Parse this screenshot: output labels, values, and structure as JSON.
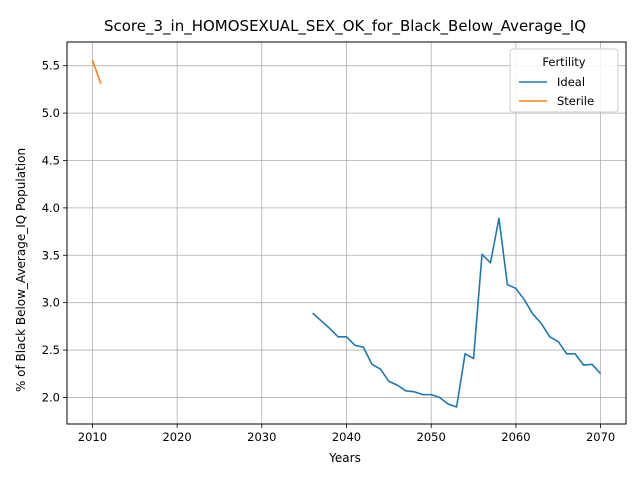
{
  "chart_data": {
    "type": "line",
    "title": "Score_3_in_HOMOSEXUAL_SEX_OK_for_Black_Below_Average_IQ",
    "xlabel": "Years",
    "ylabel": "% of Black Below_Average_IQ Population",
    "xlim": [
      2007,
      2073
    ],
    "ylim": [
      1.72,
      5.75
    ],
    "xticks": [
      2010,
      2020,
      2030,
      2040,
      2050,
      2060,
      2070
    ],
    "yticks": [
      2.0,
      2.5,
      3.0,
      3.5,
      4.0,
      4.5,
      5.0,
      5.5
    ],
    "xtick_labels": [
      "2010",
      "2020",
      "2030",
      "2040",
      "2050",
      "2060",
      "2070"
    ],
    "ytick_labels": [
      "2.0",
      "2.5",
      "3.0",
      "3.5",
      "4.0",
      "4.5",
      "5.0",
      "5.5"
    ],
    "grid": true,
    "legend": {
      "title": "Fertility",
      "placement": "top-right"
    },
    "series": [
      {
        "name": "Ideal",
        "color": "#1f77b4",
        "x": [
          2036,
          2037,
          2038,
          2039,
          2040,
          2041,
          2042,
          2043,
          2044,
          2045,
          2046,
          2047,
          2048,
          2049,
          2050,
          2051,
          2052,
          2053,
          2054,
          2055,
          2056,
          2057,
          2058,
          2059,
          2060,
          2061,
          2062,
          2063,
          2064,
          2065,
          2066,
          2067,
          2068,
          2069,
          2070
        ],
        "y": [
          2.89,
          2.81,
          2.73,
          2.64,
          2.64,
          2.55,
          2.53,
          2.35,
          2.3,
          2.17,
          2.13,
          2.07,
          2.06,
          2.03,
          2.03,
          2.0,
          1.93,
          1.9,
          2.46,
          2.41,
          3.51,
          3.42,
          3.89,
          3.19,
          3.15,
          3.03,
          2.88,
          2.78,
          2.64,
          2.59,
          2.46,
          2.46,
          2.34,
          2.35,
          2.25
        ]
      },
      {
        "name": "Sterile",
        "color": "#ff7f0e",
        "x": [
          2010,
          2011
        ],
        "y": [
          5.56,
          5.31
        ]
      }
    ]
  }
}
